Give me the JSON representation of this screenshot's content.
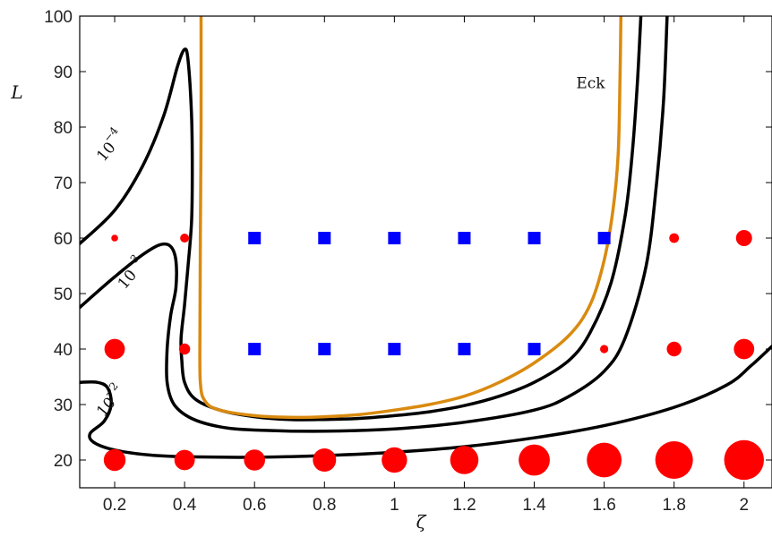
{
  "chart_data": {
    "type": "scatter",
    "xlabel": "ζ",
    "ylabel": "L",
    "xlim": [
      0.1,
      2.08
    ],
    "ylim": [
      15,
      100
    ],
    "x_ticks": [
      "0.2",
      "0.4",
      "0.6",
      "0.8",
      "1",
      "1.2",
      "1.4",
      "1.6",
      "1.8",
      "2"
    ],
    "y_ticks": [
      "20",
      "30",
      "40",
      "50",
      "60",
      "70",
      "80",
      "90",
      "100"
    ],
    "grid": false,
    "colors": {
      "contour": "#000000",
      "eckhaus": "#d98a0f",
      "unstable": "#ff0000",
      "stable": "#0000ff"
    },
    "contour_labels": [
      {
        "base": "10",
        "exp": "−4",
        "x": 0.18,
        "y": 76
      },
      {
        "base": "10",
        "exp": "−3",
        "x": 0.24,
        "y": 53
      },
      {
        "base": "10",
        "exp": "−2",
        "x": 0.18,
        "y": 30
      }
    ],
    "eck_label": {
      "text": "Eck",
      "x": 1.52,
      "y": 87
    },
    "red_points": [
      {
        "x": 0.2,
        "y": 20,
        "size": 0.5
      },
      {
        "x": 0.4,
        "y": 20,
        "size": 0.46
      },
      {
        "x": 0.6,
        "y": 20,
        "size": 0.48
      },
      {
        "x": 0.8,
        "y": 20,
        "size": 0.54
      },
      {
        "x": 1.0,
        "y": 20,
        "size": 0.6
      },
      {
        "x": 1.2,
        "y": 20,
        "size": 0.68
      },
      {
        "x": 1.4,
        "y": 20,
        "size": 0.76
      },
      {
        "x": 1.6,
        "y": 20,
        "size": 0.86
      },
      {
        "x": 1.8,
        "y": 20,
        "size": 0.94
      },
      {
        "x": 2.0,
        "y": 20,
        "size": 1.0
      },
      {
        "x": 0.2,
        "y": 40,
        "size": 0.46
      },
      {
        "x": 0.4,
        "y": 40,
        "size": 0.2
      },
      {
        "x": 1.6,
        "y": 40,
        "size": 0.12
      },
      {
        "x": 1.8,
        "y": 40,
        "size": 0.3
      },
      {
        "x": 2.0,
        "y": 40,
        "size": 0.46
      },
      {
        "x": 0.2,
        "y": 60,
        "size": 0.08
      },
      {
        "x": 0.4,
        "y": 60,
        "size": 0.14
      },
      {
        "x": 1.8,
        "y": 60,
        "size": 0.16
      },
      {
        "x": 2.0,
        "y": 60,
        "size": 0.34
      }
    ],
    "blue_points": [
      {
        "x": 0.6,
        "y": 60
      },
      {
        "x": 0.8,
        "y": 60
      },
      {
        "x": 1.0,
        "y": 60
      },
      {
        "x": 1.2,
        "y": 60
      },
      {
        "x": 1.4,
        "y": 60
      },
      {
        "x": 1.6,
        "y": 60
      },
      {
        "x": 0.6,
        "y": 40
      },
      {
        "x": 0.8,
        "y": 40
      },
      {
        "x": 1.0,
        "y": 40
      },
      {
        "x": 1.2,
        "y": 40
      },
      {
        "x": 1.4,
        "y": 40
      }
    ],
    "curves": [
      {
        "id": "contour-1e-4",
        "color": "contour",
        "points": [
          [
            0.1,
            59
          ],
          [
            0.2,
            65
          ],
          [
            0.28,
            73
          ],
          [
            0.34,
            82
          ],
          [
            0.38,
            91
          ],
          [
            0.4,
            94
          ],
          [
            0.41,
            92
          ],
          [
            0.42,
            82
          ],
          [
            0.422,
            72
          ],
          [
            0.42,
            63
          ],
          [
            0.41,
            55
          ],
          [
            0.4,
            48
          ],
          [
            0.39,
            42
          ],
          [
            0.392,
            38
          ],
          [
            0.4,
            34
          ],
          [
            0.43,
            31
          ],
          [
            0.5,
            29
          ],
          [
            0.6,
            27.8
          ],
          [
            0.7,
            27.3
          ],
          [
            0.8,
            27.3
          ],
          [
            0.9,
            27.5
          ],
          [
            1.0,
            28
          ],
          [
            1.1,
            28.7
          ],
          [
            1.2,
            29.8
          ],
          [
            1.3,
            31.5
          ],
          [
            1.4,
            34
          ],
          [
            1.5,
            38
          ],
          [
            1.56,
            43
          ],
          [
            1.62,
            52
          ],
          [
            1.66,
            64
          ],
          [
            1.68,
            75
          ],
          [
            1.695,
            88
          ],
          [
            1.705,
            100
          ]
        ]
      },
      {
        "id": "contour-1e-3",
        "color": "contour",
        "points": [
          [
            0.1,
            47.5
          ],
          [
            0.2,
            53
          ],
          [
            0.28,
            57
          ],
          [
            0.33,
            58.8
          ],
          [
            0.36,
            58.5
          ],
          [
            0.375,
            56
          ],
          [
            0.375,
            51
          ],
          [
            0.36,
            46
          ],
          [
            0.35,
            40
          ],
          [
            0.35,
            34
          ],
          [
            0.37,
            30
          ],
          [
            0.42,
            27.5
          ],
          [
            0.5,
            26
          ],
          [
            0.6,
            25.4
          ],
          [
            0.8,
            25.2
          ],
          [
            1.0,
            25.6
          ],
          [
            1.2,
            26.8
          ],
          [
            1.4,
            29
          ],
          [
            1.5,
            31.5
          ],
          [
            1.6,
            36
          ],
          [
            1.66,
            42
          ],
          [
            1.72,
            55
          ],
          [
            1.75,
            70
          ],
          [
            1.77,
            85
          ],
          [
            1.78,
            100
          ]
        ]
      },
      {
        "id": "contour-1e-2",
        "color": "contour",
        "points": [
          [
            0.1,
            34
          ],
          [
            0.15,
            34
          ],
          [
            0.18,
            33
          ],
          [
            0.19,
            30
          ],
          [
            0.17,
            27
          ],
          [
            0.13,
            24.8
          ],
          [
            0.14,
            23.2
          ],
          [
            0.2,
            21.8
          ],
          [
            0.3,
            20.9
          ],
          [
            0.4,
            20.6
          ],
          [
            0.6,
            20.5
          ],
          [
            0.8,
            20.8
          ],
          [
            1.0,
            21.4
          ],
          [
            1.2,
            22.4
          ],
          [
            1.4,
            24
          ],
          [
            1.6,
            26.2
          ],
          [
            1.8,
            29.5
          ],
          [
            1.95,
            33.5
          ],
          [
            2.02,
            37
          ],
          [
            2.08,
            40.5
          ]
        ]
      },
      {
        "id": "eckhaus",
        "color": "eckhaus",
        "points": [
          [
            0.447,
            100
          ],
          [
            0.447,
            80
          ],
          [
            0.445,
            60
          ],
          [
            0.444,
            45
          ],
          [
            0.445,
            34
          ],
          [
            0.46,
            30.5
          ],
          [
            0.5,
            29
          ],
          [
            0.6,
            28
          ],
          [
            0.7,
            27.7
          ],
          [
            0.8,
            27.8
          ],
          [
            0.9,
            28.2
          ],
          [
            1.0,
            29
          ],
          [
            1.1,
            30
          ],
          [
            1.2,
            31.5
          ],
          [
            1.3,
            34
          ],
          [
            1.4,
            37.5
          ],
          [
            1.5,
            42.5
          ],
          [
            1.56,
            48
          ],
          [
            1.6,
            56
          ],
          [
            1.625,
            65
          ],
          [
            1.64,
            75
          ],
          [
            1.645,
            88
          ],
          [
            1.648,
            100
          ]
        ]
      }
    ]
  }
}
